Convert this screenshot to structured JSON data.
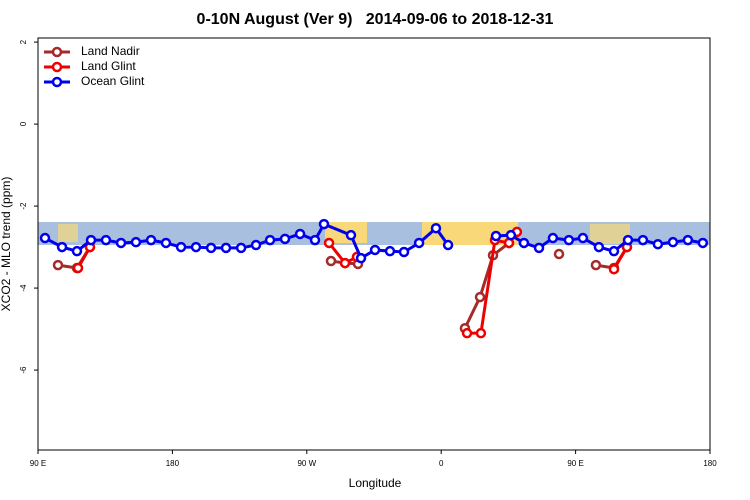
{
  "chart_data": {
    "type": "line",
    "title": "0-10N August (Ver 9)   2014-09-06 to 2018-12-31",
    "x_label": "Longitude",
    "y_label": "XCO2 - MLO trend (ppm)",
    "xlim": [
      90,
      540
    ],
    "xticks": [
      {
        "value": 90,
        "label": "90 E"
      },
      180,
      {
        "value": 270,
        "label": "90 W"
      },
      {
        "value": 360,
        "label": "0"
      },
      {
        "value": 450,
        "label": "90 E"
      },
      {
        "value": 540,
        "label": "180"
      }
    ],
    "ylim": [
      -7.95,
      2.1
    ],
    "yticks": [
      2,
      0,
      -2,
      -4,
      -6
    ],
    "legend": "top-left",
    "series": [
      {
        "name": "Land Nadir",
        "color": "#a52a2a",
        "x": [
          103.4,
          116.1,
          124.8,
          null,
          286.2,
          295.6,
          304.3,
          null,
          375.9,
          386.0,
          394.7,
          405.4,
          null,
          438.9,
          null,
          463.6,
          475.7,
          484.4
        ],
        "values": [
          -3.44,
          -3.51,
          -3.0,
          null,
          -3.34,
          -3.39,
          -3.41,
          null,
          -4.98,
          -4.22,
          -3.2,
          -2.9,
          null,
          -3.17,
          null,
          -3.44,
          -3.51,
          -3.0
        ]
      },
      {
        "name": "Land Glint",
        "color": "#ee0000",
        "x": [
          116.8,
          124.8,
          null,
          284.9,
          295.6,
          303.6,
          null,
          377.3,
          386.6,
          396.0,
          405.4,
          410.7,
          null,
          475.7,
          484.4
        ],
        "values": [
          -3.51,
          -3.0,
          null,
          -2.9,
          -3.39,
          -3.24,
          null,
          -5.1,
          -5.1,
          -2.83,
          -2.9,
          -2.63,
          null,
          -3.54,
          -3.0
        ]
      },
      {
        "name": "Ocean Glint",
        "color": "#0000ee",
        "x": [
          94.7,
          106.1,
          116.1,
          125.5,
          135.5,
          145.6,
          155.6,
          165.7,
          175.7,
          185.8,
          195.8,
          205.9,
          215.9,
          226.0,
          236.0,
          245.4,
          255.4,
          265.5,
          275.5,
          281.5,
          299.6,
          306.3,
          315.7,
          325.7,
          335.1,
          345.2,
          356.5,
          364.6,
          null,
          396.7,
          406.7,
          415.4,
          425.5,
          434.8,
          445.5,
          454.9,
          465.6,
          475.7,
          485.1,
          495.1,
          505.1,
          515.2,
          525.2,
          535.2
        ],
        "values": [
          -2.78,
          -3.0,
          -3.1,
          -2.83,
          -2.83,
          -2.9,
          -2.88,
          -2.83,
          -2.9,
          -3.0,
          -3.0,
          -3.02,
          -3.02,
          -3.02,
          -2.95,
          -2.83,
          -2.8,
          -2.68,
          -2.83,
          -2.44,
          -2.71,
          -3.27,
          -3.07,
          -3.1,
          -3.12,
          -2.9,
          -2.54,
          -2.95,
          null,
          -2.73,
          -2.71,
          -2.9,
          -3.02,
          -2.78,
          -2.83,
          -2.78,
          -3.0,
          -3.1,
          -2.83,
          -2.83,
          -2.93,
          -2.88,
          -2.83,
          -2.9
        ]
      }
    ]
  }
}
